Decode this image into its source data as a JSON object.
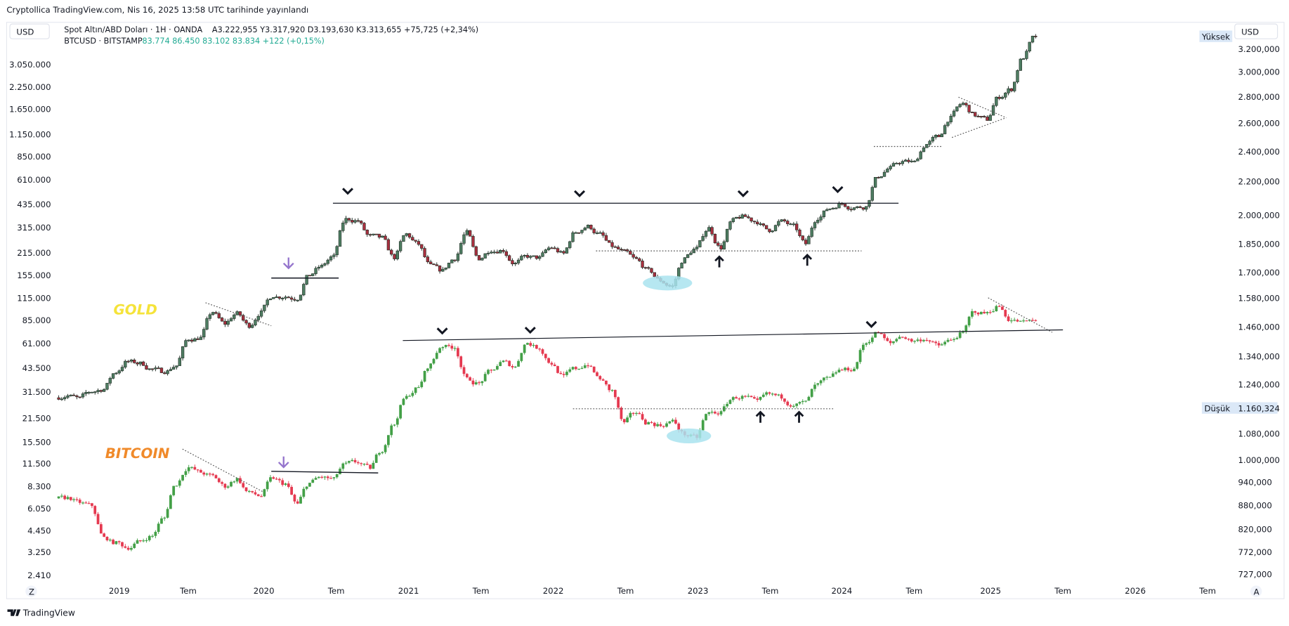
{
  "header": {
    "published": "Cryptollica TradingView.com, Nis 16, 2025 13:58 UTC tarihinde yayınlandı"
  },
  "legend": {
    "gold_symbol": "Spot Altın/ABD Doları · 1H · OANDA",
    "gold_values": "A3.222,955  Y3.317,920  D3.193,630  K3.313,655  +75,725 (+2,34%)",
    "btc_symbol": "BTCUSD · BITSTAMP",
    "btc_values": "83.774  86.450  83.102  83.834  +122 (+0,15%)"
  },
  "left_axis": {
    "currency": "USD",
    "ticks": [
      "3.050.000",
      "2.250.000",
      "1.650.000",
      "1.150.000",
      "850.000",
      "610.000",
      "435.000",
      "315.000",
      "215.000",
      "155.000",
      "115.000",
      "85.000",
      "61.000",
      "43.500",
      "31.500",
      "21.500",
      "15.500",
      "11.500",
      "8.300",
      "6.050",
      "4.450",
      "3.250",
      "2.410"
    ],
    "scale_button": "Z"
  },
  "right_axis": {
    "currency": "USD",
    "ticks": [
      "3.200,000",
      "3.000,000",
      "2.800,000",
      "2.600,000",
      "2.400,000",
      "2.200,000",
      "2.000,000",
      "1.850,000",
      "1.700,000",
      "1.580,000",
      "1.460,000",
      "1.340,000",
      "1.240,000",
      "1.080,000",
      "1.000,000",
      "940,000",
      "880,000",
      "820,000",
      "772,000",
      "727,000"
    ],
    "high_label": "Yüksek",
    "low_label": "Düşük",
    "low_value": "1.160,324",
    "scale_button": "A"
  },
  "time_axis": {
    "ticks": [
      "2019",
      "Tem",
      "2020",
      "Tem",
      "2021",
      "Tem",
      "2022",
      "Tem",
      "2023",
      "Tem",
      "2024",
      "Tem",
      "2025",
      "Tem",
      "2026",
      "Tem"
    ]
  },
  "annotations": {
    "gold_label": "GOLD",
    "bitcoin_label": "BITCOIN"
  },
  "branding": {
    "logo_text": "TradingView"
  },
  "colors": {
    "gold_up": "#4e7d62",
    "gold_down": "#a8303f",
    "gold_outline": "#1e2a22",
    "btc_up": "#43a047",
    "btc_down": "#e53950",
    "gold_label": "#f5e33a",
    "bitcoin_label": "#f08a2a",
    "highlight": "#a9e3ef",
    "purple_arrow": "#9575cd"
  },
  "chart_data": [
    {
      "type": "candlestick",
      "name": "Spot Altın/ABD Doları",
      "axis": "right",
      "scale": "log",
      "x": [
        "2018-08",
        "2018-09",
        "2018-10",
        "2018-11",
        "2018-12",
        "2019-01",
        "2019-02",
        "2019-03",
        "2019-04",
        "2019-05",
        "2019-06",
        "2019-07",
        "2019-08",
        "2019-09",
        "2019-10",
        "2019-11",
        "2019-12",
        "2020-01",
        "2020-02",
        "2020-03",
        "2020-04",
        "2020-05",
        "2020-06",
        "2020-07",
        "2020-08",
        "2020-09",
        "2020-10",
        "2020-11",
        "2020-12",
        "2021-01",
        "2021-02",
        "2021-03",
        "2021-04",
        "2021-05",
        "2021-06",
        "2021-07",
        "2021-08",
        "2021-09",
        "2021-10",
        "2021-11",
        "2021-12",
        "2022-01",
        "2022-02",
        "2022-03",
        "2022-04",
        "2022-05",
        "2022-06",
        "2022-07",
        "2022-08",
        "2022-09",
        "2022-10",
        "2022-11",
        "2022-12",
        "2023-01",
        "2023-02",
        "2023-03",
        "2023-04",
        "2023-05",
        "2023-06",
        "2023-07",
        "2023-08",
        "2023-09",
        "2023-10",
        "2023-11",
        "2023-12",
        "2024-01",
        "2024-02",
        "2024-03",
        "2024-04",
        "2024-05",
        "2024-06",
        "2024-07",
        "2024-08",
        "2024-09",
        "2024-10",
        "2024-11",
        "2024-12",
        "2025-01",
        "2025-02",
        "2025-03",
        "2025-04"
      ],
      "close": [
        1200,
        1192,
        1215,
        1222,
        1282,
        1321,
        1313,
        1292,
        1284,
        1305,
        1409,
        1413,
        1520,
        1472,
        1513,
        1464,
        1517,
        1589,
        1585,
        1577,
        1687,
        1730,
        1781,
        1975,
        1968,
        1886,
        1879,
        1776,
        1898,
        1847,
        1734,
        1708,
        1769,
        1906,
        1770,
        1814,
        1814,
        1743,
        1783,
        1774,
        1829,
        1796,
        1909,
        1937,
        1897,
        1837,
        1807,
        1766,
        1711,
        1661,
        1633,
        1768,
        1824,
        1928,
        1827,
        1969,
        1990,
        1962,
        1919,
        1965,
        1940,
        1849,
        1983,
        2036,
        2063,
        2039,
        2044,
        2230,
        2286,
        2327,
        2326,
        2447,
        2503,
        2634,
        2744,
        2657,
        2625,
        2798,
        2858,
        3124,
        3314
      ]
    },
    {
      "type": "candlestick",
      "name": "BTCUSD",
      "axis": "left",
      "scale": "log",
      "x": [
        "2018-08",
        "2018-09",
        "2018-10",
        "2018-11",
        "2018-12",
        "2019-01",
        "2019-02",
        "2019-03",
        "2019-04",
        "2019-05",
        "2019-06",
        "2019-07",
        "2019-08",
        "2019-09",
        "2019-10",
        "2019-11",
        "2019-12",
        "2020-01",
        "2020-02",
        "2020-03",
        "2020-04",
        "2020-05",
        "2020-06",
        "2020-07",
        "2020-08",
        "2020-09",
        "2020-10",
        "2020-11",
        "2020-12",
        "2021-01",
        "2021-02",
        "2021-03",
        "2021-04",
        "2021-05",
        "2021-06",
        "2021-07",
        "2021-08",
        "2021-09",
        "2021-10",
        "2021-11",
        "2021-12",
        "2022-01",
        "2022-02",
        "2022-03",
        "2022-04",
        "2022-05",
        "2022-06",
        "2022-07",
        "2022-08",
        "2022-09",
        "2022-10",
        "2022-11",
        "2022-12",
        "2023-01",
        "2023-02",
        "2023-03",
        "2023-04",
        "2023-05",
        "2023-06",
        "2023-07",
        "2023-08",
        "2023-09",
        "2023-10",
        "2023-11",
        "2023-12",
        "2024-01",
        "2024-02",
        "2024-03",
        "2024-04",
        "2024-05",
        "2024-06",
        "2024-07",
        "2024-08",
        "2024-09",
        "2024-10",
        "2024-11",
        "2024-12",
        "2025-01",
        "2025-02",
        "2025-03",
        "2025-04"
      ],
      "close": [
        7000,
        6600,
        6300,
        4000,
        3700,
        3450,
        3800,
        4100,
        5300,
        8550,
        10800,
        10100,
        9600,
        8300,
        9150,
        7550,
        7200,
        9350,
        8550,
        6400,
        8650,
        9450,
        9150,
        11350,
        11650,
        10780,
        13800,
        19700,
        29000,
        33100,
        45200,
        58800,
        57700,
        37300,
        35000,
        41500,
        47100,
        43800,
        61300,
        57000,
        46200,
        38500,
        43200,
        45500,
        37700,
        31800,
        19900,
        23300,
        20000,
        19400,
        20500,
        17200,
        16500,
        23100,
        23100,
        28500,
        29200,
        27200,
        30500,
        29200,
        26000,
        27000,
        34600,
        37700,
        42300,
        42600,
        61200,
        71300,
        60700,
        67500,
        62700,
        64600,
        58900,
        63300,
        70200,
        96400,
        93400,
        102400,
        84300,
        82500,
        83834
      ]
    }
  ]
}
